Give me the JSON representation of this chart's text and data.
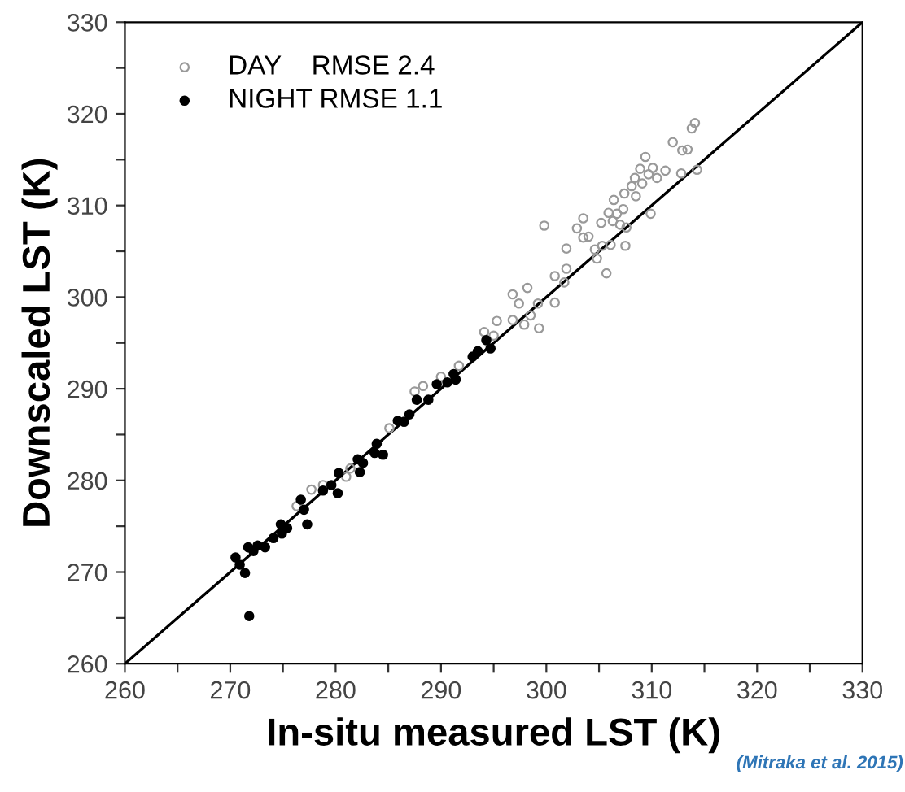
{
  "chart_data": {
    "type": "scatter",
    "xlabel": "In-situ measured LST (K)",
    "ylabel": "Downscaled LST (K)",
    "xlim": [
      260,
      330
    ],
    "ylim": [
      260,
      330
    ],
    "xticks": [
      260,
      {
        "value": 265,
        "label": null
      },
      270,
      {
        "value": 275,
        "label": null
      },
      280,
      {
        "value": 285,
        "label": null
      },
      290,
      {
        "value": 295,
        "label": null
      },
      300,
      {
        "value": 305,
        "label": null
      },
      310,
      {
        "value": 315,
        "label": null
      },
      320,
      {
        "value": 325,
        "label": null
      },
      330
    ],
    "yticks": [
      260,
      {
        "value": 265,
        "label": null
      },
      270,
      {
        "value": 275,
        "label": null
      },
      280,
      {
        "value": 285,
        "label": null
      },
      290,
      {
        "value": 295,
        "label": null
      },
      300,
      {
        "value": 305,
        "label": null
      },
      310,
      {
        "value": 315,
        "label": null
      },
      320,
      {
        "value": 325,
        "label": null
      },
      330
    ],
    "legend": "top left",
    "grid": false,
    "annotations": [
      "(Mitraka et al. 2015)"
    ],
    "series": [
      {
        "name": "DAY    RMSE 2.4",
        "color": "#999999",
        "marker": "circle",
        "x": [
          276.3,
          277.7,
          278.8,
          281.0,
          281.4,
          285.1,
          287.5,
          288.3,
          290.0,
          291.7,
          294.1,
          295.0,
          295.3,
          296.8,
          296.8,
          297.4,
          297.9,
          298.2,
          298.5,
          299.2,
          299.3,
          299.8,
          300.8,
          300.8,
          301.7,
          301.9,
          301.9,
          302.9,
          303.5,
          303.5,
          304.0,
          304.6,
          304.8,
          305.2,
          305.3,
          305.7,
          305.9,
          306.1,
          306.3,
          306.4,
          306.7,
          307.0,
          307.3,
          307.4,
          307.5,
          307.6,
          308.1,
          308.4,
          308.5,
          308.9,
          309.1,
          309.4,
          309.7,
          309.9,
          310.1,
          310.5,
          311.3,
          312.0,
          312.8,
          312.9,
          313.4,
          313.8,
          314.1,
          314.3
        ],
        "values": [
          277.2,
          279.0,
          279.5,
          280.4,
          281.3,
          285.7,
          289.7,
          290.3,
          291.3,
          292.5,
          296.2,
          295.8,
          297.4,
          300.3,
          297.5,
          299.3,
          297.0,
          301.0,
          298.0,
          299.3,
          296.6,
          307.8,
          302.3,
          299.4,
          301.6,
          303.1,
          305.3,
          307.5,
          308.6,
          306.5,
          306.6,
          305.2,
          304.2,
          308.1,
          305.6,
          302.6,
          309.2,
          305.7,
          308.3,
          310.6,
          309.1,
          307.9,
          309.6,
          311.3,
          305.6,
          307.6,
          312.1,
          313.0,
          311.0,
          314.0,
          312.4,
          315.3,
          313.4,
          309.1,
          314.1,
          313.0,
          313.8,
          316.9,
          313.5,
          316.0,
          316.1,
          318.4,
          319.0,
          313.9
        ]
      },
      {
        "name": "NIGHT RMSE 1.1",
        "color": "#000000",
        "marker": "circle",
        "x": [
          270.5,
          270.9,
          271.4,
          271.8,
          271.7,
          272.2,
          272.6,
          273.3,
          274.1,
          274.8,
          274.9,
          275.4,
          276.7,
          277.0,
          277.3,
          278.8,
          279.6,
          280.2,
          280.3,
          282.1,
          282.3,
          282.6,
          283.7,
          283.9,
          284.5,
          285.9,
          286.5,
          287.0,
          287.7,
          288.8,
          289.6,
          290.6,
          291.2,
          291.4,
          293.0,
          293.5,
          294.3,
          294.7
        ],
        "values": [
          271.6,
          270.8,
          269.9,
          265.2,
          272.7,
          272.3,
          272.9,
          272.7,
          273.7,
          275.2,
          274.2,
          274.8,
          277.9,
          276.8,
          275.2,
          278.9,
          279.5,
          278.6,
          280.8,
          282.3,
          280.9,
          281.9,
          283.0,
          284.0,
          282.8,
          286.5,
          286.4,
          287.2,
          288.8,
          288.8,
          290.5,
          290.7,
          291.6,
          291.0,
          293.5,
          294.1,
          295.3,
          294.4
        ]
      },
      {
        "type": "line",
        "color": "#000000",
        "marker": "none",
        "x": [
          260,
          330
        ],
        "values": [
          260,
          330
        ]
      }
    ]
  }
}
